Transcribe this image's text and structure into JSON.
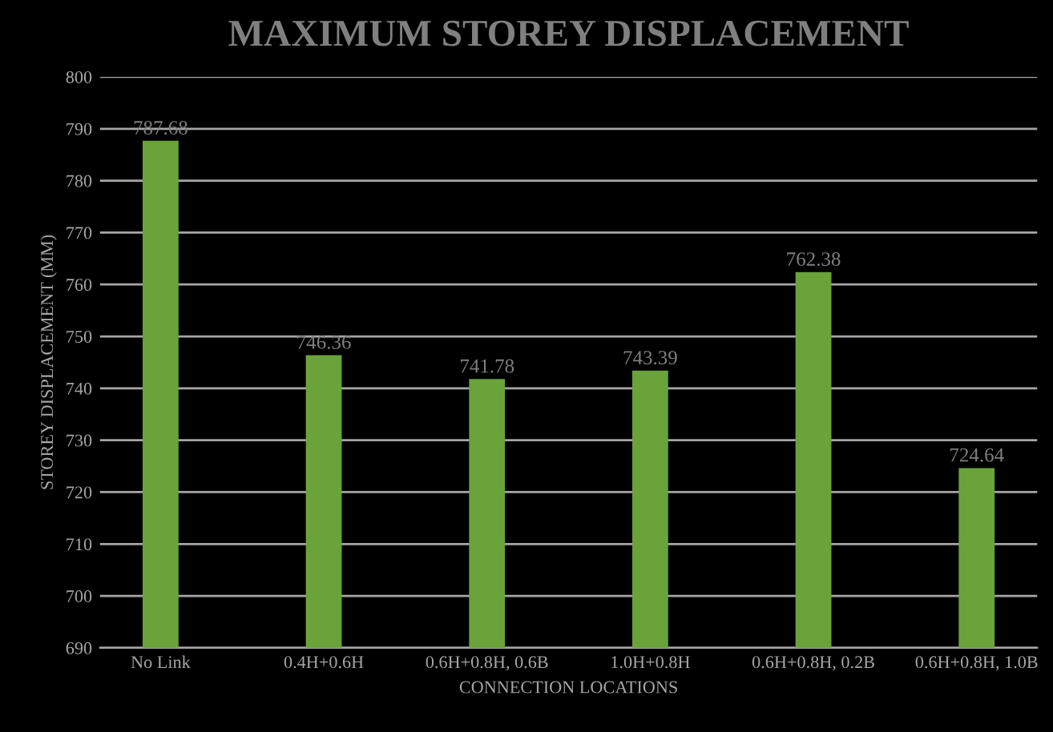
{
  "chart_data": {
    "type": "bar",
    "title": "MAXIMUM STOREY DISPLACEMENT",
    "xlabel": "CONNECTION LOCATIONS",
    "ylabel": "STOREY DISPLACEMENT (MM)",
    "categories": [
      "No Link",
      "0.4H+0.6H",
      "0.6H+0.8H, 0.6B",
      "1.0H+0.8H",
      "0.6H+0.8H, 0.2B",
      "0.6H+0.8H, 1.0B"
    ],
    "values": [
      787.68,
      746.36,
      741.78,
      743.39,
      762.38,
      724.64
    ],
    "color": "#6aa33a",
    "data_labels": true,
    "ylim": [
      690,
      800
    ],
    "yticks": [
      690,
      700,
      710,
      720,
      730,
      740,
      750,
      760,
      770,
      780,
      790,
      800
    ],
    "grid": "y",
    "legend": false
  }
}
